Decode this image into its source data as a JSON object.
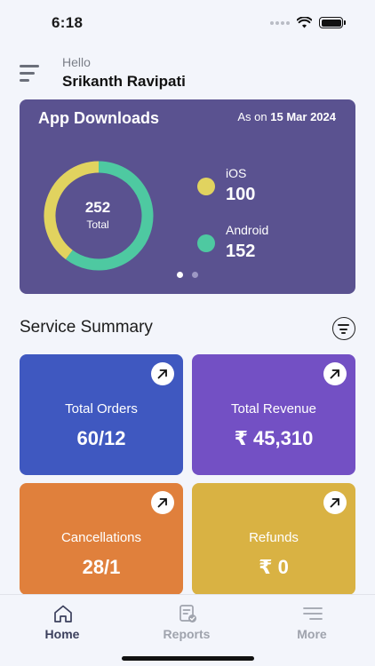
{
  "status_bar": {
    "time": "6:18"
  },
  "header": {
    "greeting": "Hello",
    "user_name": "Srikanth Ravipati"
  },
  "downloads_card": {
    "title": "App Downloads",
    "as_on_prefix": "As on",
    "as_on_date": "15 Mar 2024",
    "total_value": "252",
    "total_label": "Total",
    "legend": [
      {
        "name": "iOS",
        "value": "100",
        "color": "#e1d35f"
      },
      {
        "name": "Android",
        "value": "152",
        "color": "#4ec9a1"
      }
    ],
    "pager": {
      "pages": 2,
      "active": 0
    },
    "card_color": "#5a5290"
  },
  "chart_data": {
    "type": "pie",
    "donut": true,
    "categories": [
      "iOS",
      "Android"
    ],
    "values": [
      100,
      152
    ],
    "colors": [
      "#e1d35f",
      "#4ec9a1"
    ],
    "center_label": "252 Total"
  },
  "service_summary": {
    "title": "Service Summary",
    "tiles": [
      {
        "label": "Total Orders",
        "value": "60/12",
        "color": "#3f58c0",
        "icon": "arrow-up-right-icon"
      },
      {
        "label": "Total Revenue",
        "value": "₹ 45,310",
        "color": "#7350c4",
        "icon": "arrow-up-right-icon"
      },
      {
        "label": "Cancellations",
        "value": "28/1",
        "color": "#e0803c",
        "icon": "arrow-up-right-icon"
      },
      {
        "label": "Refunds",
        "value": "₹ 0",
        "color": "#d9b243",
        "icon": "arrow-up-right-icon"
      }
    ]
  },
  "bottom_nav": {
    "items": [
      {
        "label": "Home",
        "icon": "home-icon",
        "active": true
      },
      {
        "label": "Reports",
        "icon": "reports-icon",
        "active": false
      },
      {
        "label": "More",
        "icon": "more-icon",
        "active": false
      }
    ]
  }
}
